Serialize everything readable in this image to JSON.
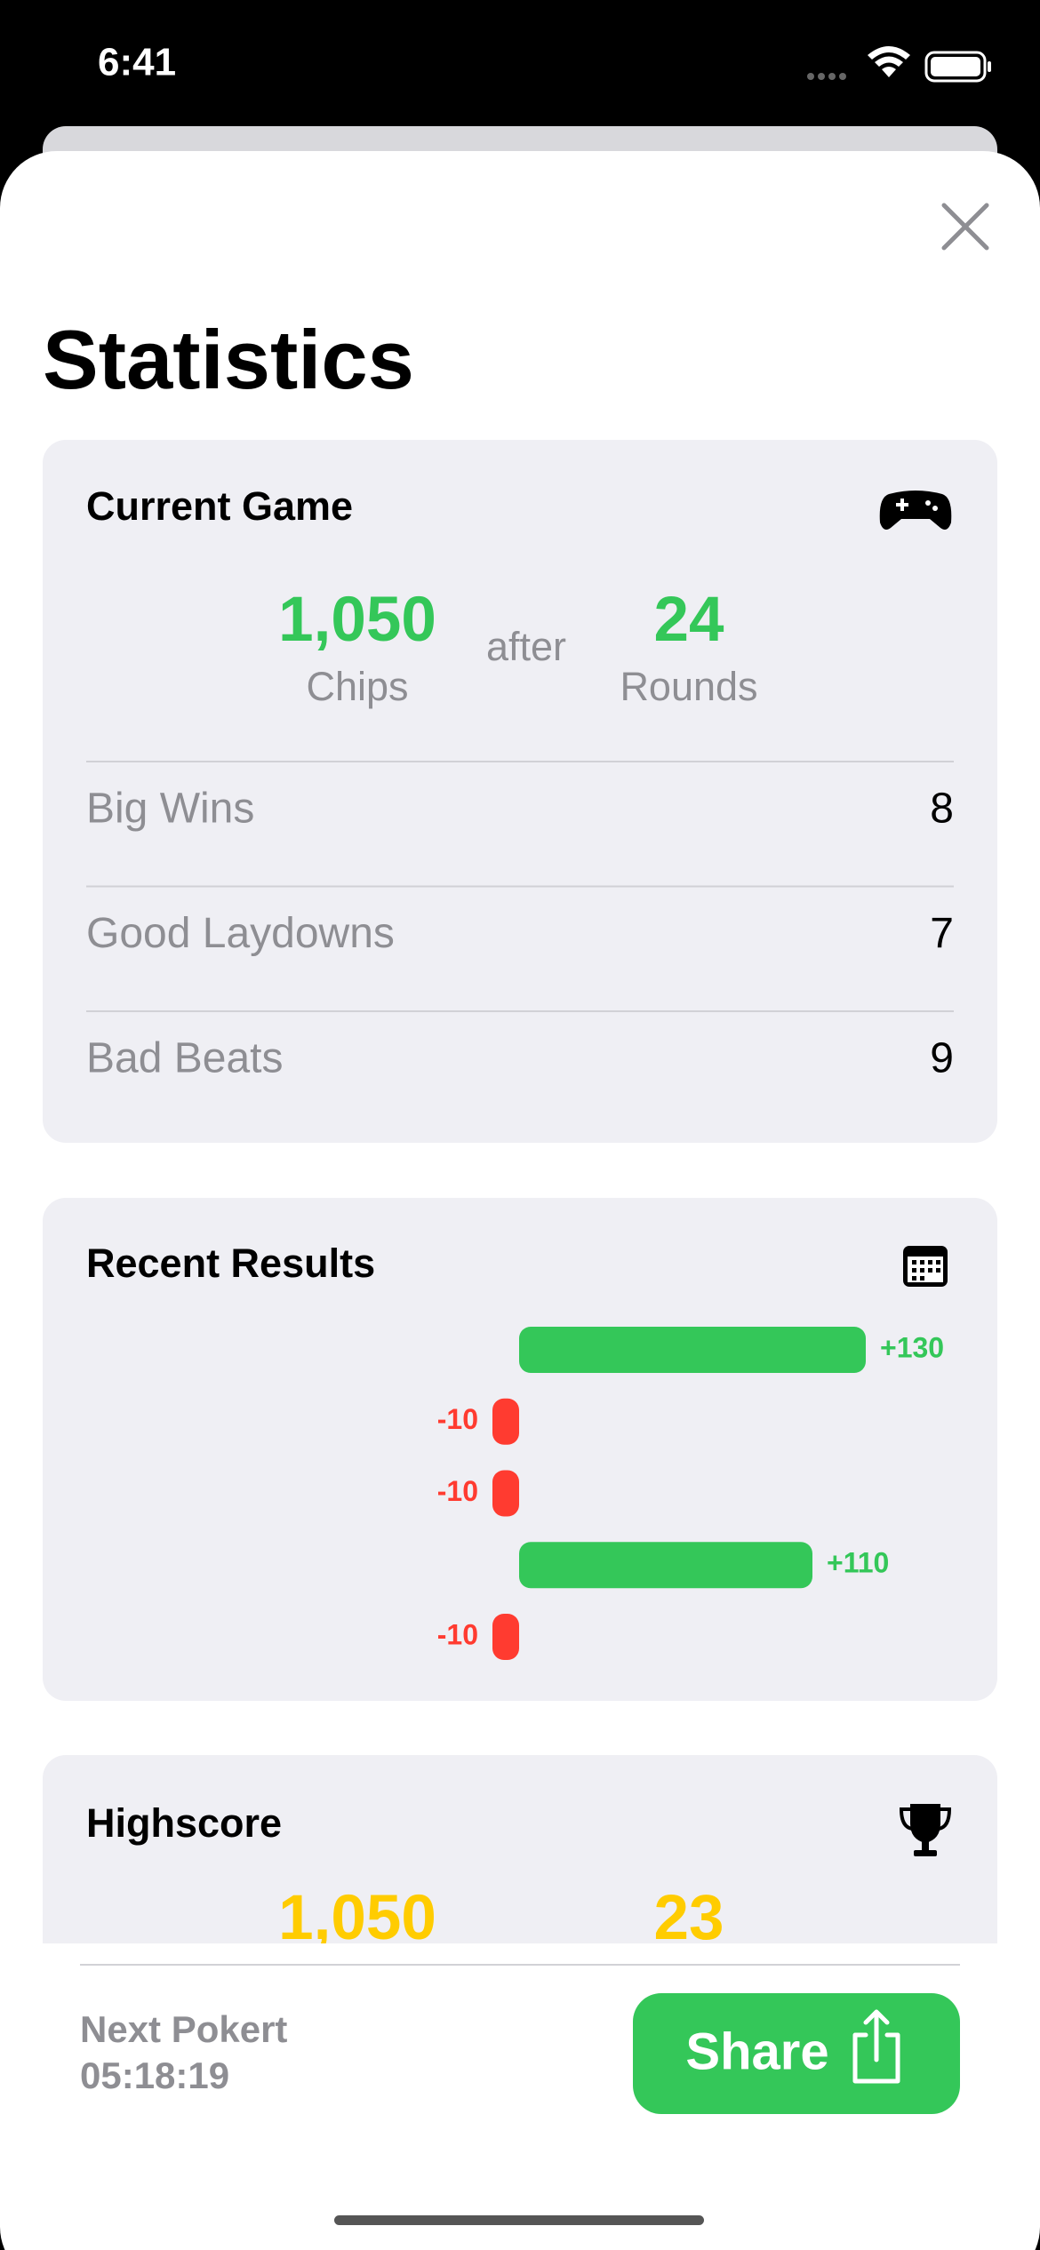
{
  "status_bar": {
    "time": "6:41"
  },
  "title": "Statistics",
  "current_game": {
    "title": "Current Game",
    "chips": "1,050",
    "chips_label": "Chips",
    "connector": "after",
    "rounds": "24",
    "rounds_label": "Rounds",
    "stats": [
      {
        "label": "Big Wins",
        "value": 8
      },
      {
        "label": "Good Laydowns",
        "value": 7
      },
      {
        "label": "Bad Beats",
        "value": 9
      }
    ]
  },
  "recent_results": {
    "title": "Recent Results",
    "chart_data": {
      "type": "bar",
      "values": [
        130,
        -10,
        -10,
        110,
        -10
      ],
      "value_labels": [
        "+130",
        "-10",
        "-10",
        "+110",
        "-10"
      ],
      "colors": {
        "positive": "#34c759",
        "negative": "#ff3b30"
      }
    }
  },
  "highscore": {
    "title": "Highscore",
    "chips": "1,050",
    "rounds": "23"
  },
  "footer": {
    "next_label": "Next Pokert",
    "countdown": "05:18:19",
    "share_button": "Share"
  }
}
